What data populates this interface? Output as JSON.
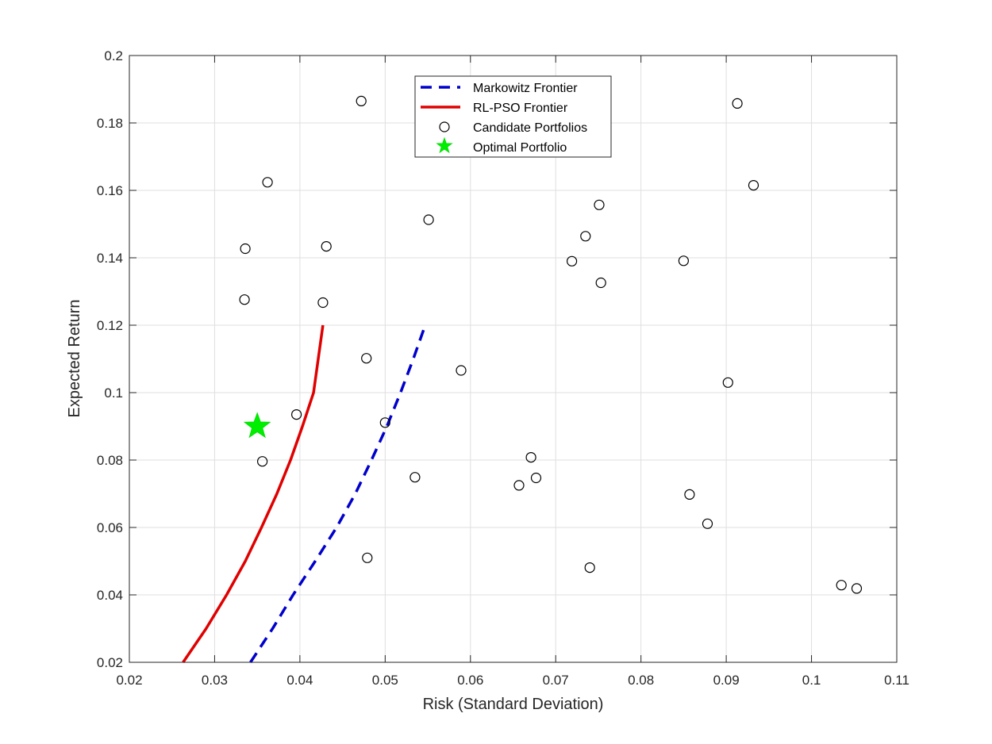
{
  "chart_data": {
    "type": "scatter",
    "xlabel": "Risk (Standard Deviation)",
    "ylabel": "Expected Return",
    "xlim": [
      0.02,
      0.11
    ],
    "ylim": [
      0.02,
      0.2
    ],
    "xticks": [
      "0.02",
      "0.03",
      "0.04",
      "0.05",
      "0.06",
      "0.07",
      "0.08",
      "0.09",
      "0.1",
      "0.11"
    ],
    "yticks": [
      "0.02",
      "0.04",
      "0.06",
      "0.08",
      "0.1",
      "0.12",
      "0.14",
      "0.16",
      "0.18",
      "0.2"
    ],
    "grid": true,
    "legend_position": "top-center",
    "colors": {
      "markowitz": "#0000cc",
      "rlpso": "#e00000",
      "candidate": "#000000",
      "optimal": "#00ee00"
    },
    "series": [
      {
        "name": "Markowitz Frontier",
        "style": "dashed-line",
        "x": [
          0.0342,
          0.0368,
          0.0392,
          0.0418,
          0.0443,
          0.0465,
          0.0484,
          0.0502,
          0.0518,
          0.0533,
          0.0547
        ],
        "y": [
          0.02,
          0.03,
          0.04,
          0.05,
          0.06,
          0.07,
          0.08,
          0.09,
          0.1,
          0.11,
          0.12
        ]
      },
      {
        "name": "RL-PSO Frontier",
        "style": "solid-line",
        "x": [
          0.0263,
          0.029,
          0.0314,
          0.0336,
          0.0355,
          0.0373,
          0.0389,
          0.0403,
          0.0416,
          0.0427
        ],
        "y": [
          0.02,
          0.03,
          0.04,
          0.05,
          0.06,
          0.07,
          0.08,
          0.09,
          0.1,
          0.12
        ]
      },
      {
        "name": "Candidate Portfolios",
        "style": "circle-markers",
        "x": [
          0.0472,
          0.0913,
          0.0362,
          0.0932,
          0.0751,
          0.0551,
          0.0735,
          0.0336,
          0.0431,
          0.0719,
          0.085,
          0.0753,
          0.0335,
          0.0427,
          0.0478,
          0.0589,
          0.0902,
          0.0396,
          0.05,
          0.0356,
          0.0671,
          0.0535,
          0.0677,
          0.0657,
          0.0857,
          0.0878,
          0.0479,
          0.074,
          0.1035,
          0.1053
        ],
        "y": [
          0.1865,
          0.1858,
          0.1624,
          0.1615,
          0.1557,
          0.1513,
          0.1464,
          0.1427,
          0.1434,
          0.139,
          0.1391,
          0.1326,
          0.1276,
          0.1267,
          0.1102,
          0.1066,
          0.103,
          0.0935,
          0.0911,
          0.0796,
          0.0808,
          0.0749,
          0.0747,
          0.0725,
          0.0698,
          0.0611,
          0.051,
          0.0481,
          0.0429,
          0.0419
        ]
      },
      {
        "name": "Optimal Portfolio",
        "style": "star-marker",
        "x": [
          0.035
        ],
        "y": [
          0.09
        ]
      }
    ]
  }
}
